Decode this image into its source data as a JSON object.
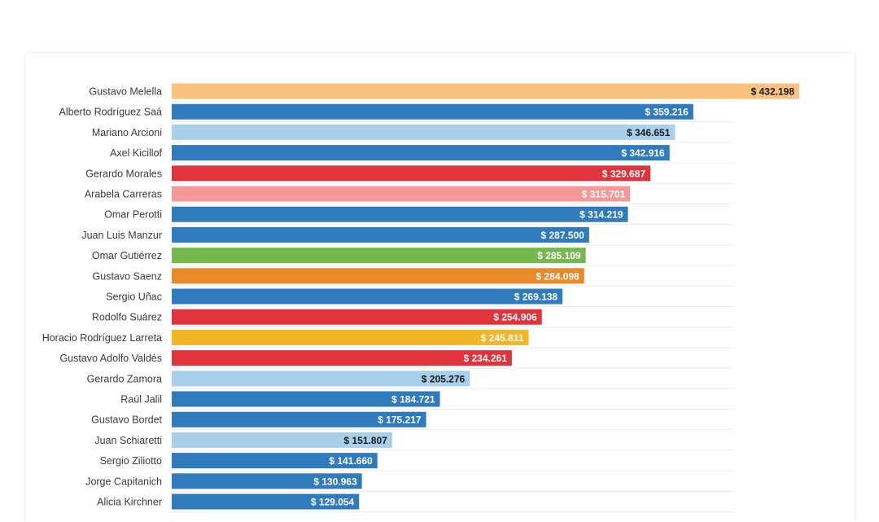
{
  "chart_data": {
    "type": "bar",
    "orientation": "horizontal",
    "title": "",
    "xlabel": "",
    "ylabel": "",
    "xlim": [
      0,
      432198
    ],
    "grid": true,
    "bars": [
      {
        "label": "Gustavo Melella",
        "value": 432198,
        "value_label": "$ 432.198",
        "color": "#f9c27e",
        "label_color": "#1a1a1a"
      },
      {
        "label": "Alberto Rodríguez Saá",
        "value": 359216,
        "value_label": "$ 359.216",
        "color": "#2f7bbd",
        "label_color": "#ffffff"
      },
      {
        "label": "Mariano Arcioni",
        "value": 346651,
        "value_label": "$ 346.651",
        "color": "#a8d0ea",
        "label_color": "#1a1a1a"
      },
      {
        "label": "Axel Kicillof",
        "value": 342916,
        "value_label": "$ 342.916",
        "color": "#2f7bbd",
        "label_color": "#ffffff"
      },
      {
        "label": "Gerardo Morales",
        "value": 329687,
        "value_label": "$ 329.687",
        "color": "#e0333c",
        "label_color": "#ffffff"
      },
      {
        "label": "Arabela Carreras",
        "value": 315701,
        "value_label": "$ 315.701",
        "color": "#f49898",
        "label_color": "#ffffff"
      },
      {
        "label": "Omar Perotti",
        "value": 314219,
        "value_label": "$ 314.219",
        "color": "#2f7bbd",
        "label_color": "#ffffff"
      },
      {
        "label": "Juan Luis Manzur",
        "value": 287500,
        "value_label": "$ 287.500",
        "color": "#2f7bbd",
        "label_color": "#ffffff"
      },
      {
        "label": "Omar Gutiérrez",
        "value": 285109,
        "value_label": "$ 285.109",
        "color": "#74b84e",
        "label_color": "#ffffff"
      },
      {
        "label": "Gustavo Saenz",
        "value": 284098,
        "value_label": "$ 284.098",
        "color": "#e9892a",
        "label_color": "#ffffff"
      },
      {
        "label": "Sergio Uñac",
        "value": 269138,
        "value_label": "$ 269.138",
        "color": "#2f7bbd",
        "label_color": "#ffffff"
      },
      {
        "label": "Rodolfo Suárez",
        "value": 254906,
        "value_label": "$ 254.906",
        "color": "#e0333c",
        "label_color": "#ffffff"
      },
      {
        "label": "Horacio Rodríguez Larreta",
        "value": 245811,
        "value_label": "$ 245.811",
        "color": "#f1b526",
        "label_color": "#ffffff"
      },
      {
        "label": "Gustavo Adolfo Valdés",
        "value": 234261,
        "value_label": "$ 234.261",
        "color": "#e0333c",
        "label_color": "#ffffff"
      },
      {
        "label": "Gerardo Zamora",
        "value": 205276,
        "value_label": "$ 205.276",
        "color": "#a8d0ea",
        "label_color": "#1a1a1a"
      },
      {
        "label": "Raúl Jalil",
        "value": 184721,
        "value_label": "$ 184.721",
        "color": "#2f7bbd",
        "label_color": "#ffffff"
      },
      {
        "label": "Gustavo Bordet",
        "value": 175217,
        "value_label": "$ 175.217",
        "color": "#2f7bbd",
        "label_color": "#ffffff"
      },
      {
        "label": "Juan Schiaretti",
        "value": 151807,
        "value_label": "$ 151.807",
        "color": "#a8d0ea",
        "label_color": "#1a1a1a"
      },
      {
        "label": "Sergio Ziliotto",
        "value": 141660,
        "value_label": "$ 141.660",
        "color": "#2f7bbd",
        "label_color": "#ffffff"
      },
      {
        "label": "Jorge Capitanich",
        "value": 130963,
        "value_label": "$ 130.963",
        "color": "#2f7bbd",
        "label_color": "#ffffff"
      },
      {
        "label": "Alicia Kirchner",
        "value": 129054,
        "value_label": "$ 129.054",
        "color": "#2f7bbd",
        "label_color": "#ffffff"
      }
    ]
  }
}
